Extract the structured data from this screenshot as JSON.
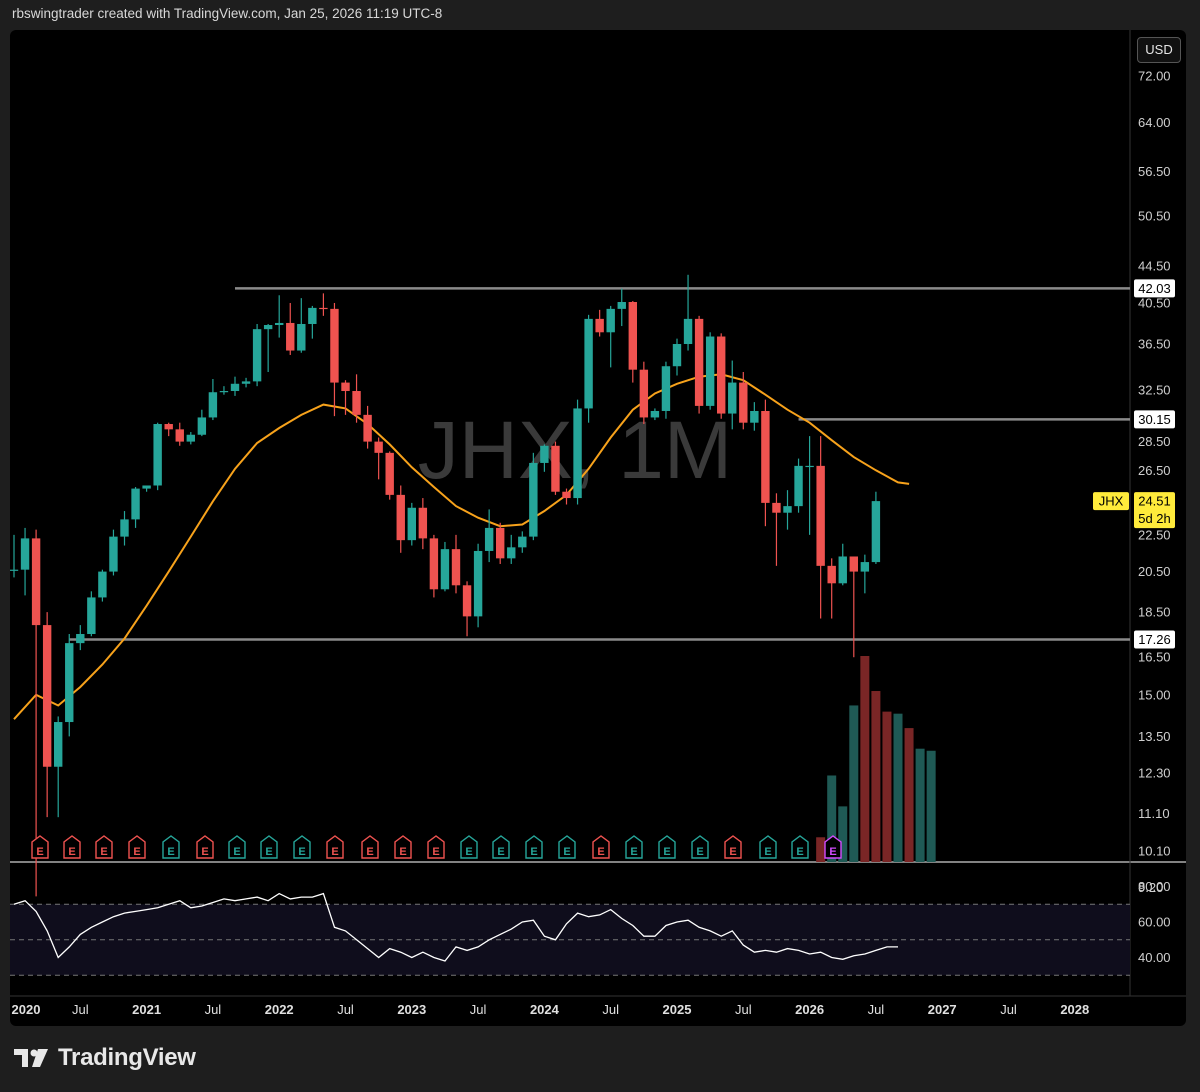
{
  "header": {
    "text": "rbswingtrader created with TradingView.com, Jan 25, 2026 11:19 UTC-8"
  },
  "watermark": "JHX, 1M",
  "currency_label": "USD",
  "footer": {
    "brand": "TradingView"
  },
  "colors": {
    "up": "#26a69a",
    "down": "#ef5350",
    "ma": "#f7a21b",
    "level_line": "#8a8a8a",
    "rsi": "#ffffff",
    "price_tag_bg": "#ffeb3b",
    "vol_up": "#1f5a55",
    "vol_down": "#7a2626"
  },
  "chart_data": {
    "type": "candlestick",
    "symbol": "JHX",
    "interval": "1M",
    "scale": "log",
    "y_ticks": [
      "72.00",
      "64.00",
      "56.50",
      "50.50",
      "44.50",
      "40.50",
      "36.50",
      "32.50",
      "28.50",
      "26.50",
      "22.50",
      "20.50",
      "18.50",
      "16.50",
      "15.00",
      "13.50",
      "12.30",
      "11.10",
      "10.10",
      "9.20"
    ],
    "y_tick_values": [
      72,
      64,
      56.5,
      50.5,
      44.5,
      40.5,
      36.5,
      32.5,
      28.5,
      26.5,
      22.5,
      20.5,
      18.5,
      16.5,
      15,
      13.5,
      12.3,
      11.1,
      10.1,
      9.2
    ],
    "x_labels": [
      {
        "label": "2020",
        "year": true,
        "m": 0
      },
      {
        "label": "Jul",
        "year": false,
        "m": 6
      },
      {
        "label": "2021",
        "year": true,
        "m": 12
      },
      {
        "label": "Jul",
        "year": false,
        "m": 18
      },
      {
        "label": "2022",
        "year": true,
        "m": 24
      },
      {
        "label": "Jul",
        "year": false,
        "m": 30
      },
      {
        "label": "2023",
        "year": true,
        "m": 36
      },
      {
        "label": "Jul",
        "year": false,
        "m": 42
      },
      {
        "label": "2024",
        "year": true,
        "m": 48
      },
      {
        "label": "Jul",
        "year": false,
        "m": 54
      },
      {
        "label": "2025",
        "year": true,
        "m": 60
      },
      {
        "label": "Jul",
        "year": false,
        "m": 66
      },
      {
        "label": "2026",
        "year": true,
        "m": 72
      },
      {
        "label": "Jul",
        "year": false,
        "m": 78
      },
      {
        "label": "2027",
        "year": true,
        "m": 84
      },
      {
        "label": "Jul",
        "year": false,
        "m": 90
      },
      {
        "label": "2028",
        "year": true,
        "m": 96
      }
    ],
    "candles": [
      [
        20.6,
        22.5,
        20.2,
        20.6
      ],
      [
        20.6,
        22.9,
        19.3,
        22.3
      ],
      [
        22.3,
        22.8,
        9.0,
        17.9
      ],
      [
        17.9,
        18.5,
        11.0,
        12.5
      ],
      [
        12.5,
        14.2,
        11.0,
        14.0
      ],
      [
        14.0,
        17.5,
        13.5,
        17.1
      ],
      [
        17.1,
        17.9,
        16.8,
        17.5
      ],
      [
        17.5,
        19.5,
        17.4,
        19.2
      ],
      [
        19.2,
        20.6,
        19.0,
        20.5
      ],
      [
        20.5,
        22.8,
        20.3,
        22.4
      ],
      [
        22.4,
        23.9,
        21.9,
        23.4
      ],
      [
        23.4,
        25.4,
        22.9,
        25.3
      ],
      [
        25.3,
        25.5,
        25.1,
        25.5
      ],
      [
        25.5,
        29.9,
        25.2,
        29.8
      ],
      [
        29.8,
        29.9,
        28.9,
        29.4
      ],
      [
        29.4,
        29.9,
        28.2,
        28.5
      ],
      [
        28.5,
        29.2,
        28.3,
        29.0
      ],
      [
        29.0,
        30.9,
        28.9,
        30.3
      ],
      [
        30.3,
        33.4,
        30.1,
        32.3
      ],
      [
        32.3,
        32.8,
        32.1,
        32.4
      ],
      [
        32.4,
        33.6,
        32.0,
        33.0
      ],
      [
        33.0,
        33.5,
        32.7,
        33.2
      ],
      [
        33.2,
        38.4,
        32.8,
        37.9
      ],
      [
        37.9,
        38.4,
        34.0,
        38.3
      ],
      [
        38.3,
        41.3,
        37.1,
        38.5
      ],
      [
        38.5,
        40.5,
        35.5,
        35.9
      ],
      [
        35.9,
        41.0,
        35.7,
        38.4
      ],
      [
        38.4,
        40.2,
        37.0,
        40.0
      ],
      [
        40.0,
        41.5,
        39.2,
        39.9
      ],
      [
        39.9,
        40.5,
        30.4,
        33.1
      ],
      [
        33.1,
        33.3,
        30.5,
        32.4
      ],
      [
        32.4,
        33.8,
        29.9,
        30.5
      ],
      [
        30.5,
        31.2,
        28.0,
        28.5
      ],
      [
        28.5,
        28.8,
        25.9,
        27.7
      ],
      [
        27.7,
        27.8,
        24.6,
        24.9
      ],
      [
        24.9,
        25.5,
        21.5,
        22.2
      ],
      [
        22.2,
        24.4,
        21.9,
        24.1
      ],
      [
        24.1,
        24.7,
        21.7,
        22.3
      ],
      [
        22.3,
        22.5,
        19.2,
        19.6
      ],
      [
        19.6,
        22.1,
        19.5,
        21.7
      ],
      [
        21.7,
        22.5,
        19.4,
        19.8
      ],
      [
        19.8,
        20.0,
        17.4,
        18.3
      ],
      [
        18.3,
        22.0,
        17.8,
        21.6
      ],
      [
        21.6,
        24.0,
        21.0,
        22.9
      ],
      [
        22.9,
        23.2,
        20.9,
        21.2
      ],
      [
        21.2,
        22.5,
        20.9,
        21.8
      ],
      [
        21.8,
        22.7,
        21.5,
        22.4
      ],
      [
        22.4,
        27.7,
        22.2,
        27.0
      ],
      [
        27.0,
        28.3,
        26.4,
        28.2
      ],
      [
        28.2,
        28.5,
        24.9,
        25.1
      ],
      [
        25.1,
        25.3,
        24.3,
        24.7
      ],
      [
        24.7,
        31.7,
        24.3,
        31.0
      ],
      [
        31.0,
        39.3,
        29.9,
        38.9
      ],
      [
        38.9,
        39.8,
        37.2,
        37.6
      ],
      [
        37.6,
        40.2,
        34.4,
        39.9
      ],
      [
        39.9,
        42.0,
        38.2,
        40.6
      ],
      [
        40.6,
        40.7,
        33.1,
        34.2
      ],
      [
        34.2,
        34.9,
        29.8,
        30.3
      ],
      [
        30.3,
        31.0,
        30.1,
        30.8
      ],
      [
        30.8,
        34.9,
        30.2,
        34.5
      ],
      [
        34.5,
        37.0,
        33.7,
        36.5
      ],
      [
        36.5,
        43.5,
        35.9,
        38.9
      ],
      [
        38.9,
        39.2,
        30.6,
        31.2
      ],
      [
        31.2,
        37.6,
        30.9,
        37.2
      ],
      [
        37.2,
        37.5,
        30.2,
        30.6
      ],
      [
        30.6,
        35.0,
        29.4,
        33.1
      ],
      [
        33.1,
        34.0,
        29.4,
        29.9
      ],
      [
        29.9,
        31.5,
        29.3,
        30.8
      ],
      [
        30.8,
        31.7,
        23.0,
        24.4
      ],
      [
        24.4,
        25.0,
        20.8,
        23.8
      ],
      [
        23.8,
        25.2,
        22.8,
        24.2
      ],
      [
        24.2,
        27.3,
        23.8,
        26.8
      ],
      [
        26.8,
        28.9,
        22.5,
        26.8
      ]
    ],
    "candles_tail": [
      [
        26.8,
        28.9,
        18.2,
        20.8
      ],
      [
        20.8,
        21.2,
        18.2,
        19.9
      ],
      [
        19.9,
        22.0,
        19.8,
        21.3
      ],
      [
        21.3,
        21.3,
        16.5,
        20.5
      ],
      [
        20.5,
        21.4,
        19.4,
        21.0
      ],
      [
        21.0,
        25.1,
        20.9,
        24.51
      ]
    ],
    "ma": [
      [
        0,
        14.1
      ],
      [
        2,
        15.0
      ],
      [
        4,
        14.6
      ],
      [
        6,
        15.3
      ],
      [
        8,
        16.2
      ],
      [
        10,
        17.3
      ],
      [
        12,
        18.8
      ],
      [
        14,
        20.5
      ],
      [
        16,
        22.4
      ],
      [
        18,
        24.5
      ],
      [
        20,
        26.6
      ],
      [
        22,
        28.4
      ],
      [
        24,
        29.5
      ],
      [
        26,
        30.5
      ],
      [
        28,
        31.3
      ],
      [
        30,
        31.0
      ],
      [
        32,
        29.8
      ],
      [
        34,
        28.3
      ],
      [
        36,
        26.7
      ],
      [
        38,
        25.4
      ],
      [
        40,
        24.2
      ],
      [
        42,
        23.5
      ],
      [
        44,
        23.0
      ],
      [
        46,
        23.1
      ],
      [
        48,
        23.9
      ],
      [
        50,
        24.9
      ],
      [
        52,
        26.6
      ],
      [
        54,
        28.8
      ],
      [
        56,
        30.9
      ],
      [
        58,
        32.2
      ],
      [
        60,
        33.0
      ],
      [
        62,
        33.6
      ],
      [
        64,
        33.8
      ],
      [
        66,
        33.3
      ],
      [
        68,
        32.1
      ],
      [
        70,
        30.9
      ],
      [
        72,
        29.9
      ],
      [
        74,
        28.6
      ],
      [
        76,
        27.4
      ],
      [
        78,
        26.5
      ],
      [
        80,
        25.7
      ],
      [
        81,
        25.6
      ]
    ],
    "levels": [
      {
        "price": 42.03,
        "label": "42.03",
        "from_m": 20
      },
      {
        "price": 30.15,
        "label": "30.15",
        "from_m": 71
      },
      {
        "price": 17.26,
        "label": "17.26",
        "from_m": 5
      }
    ],
    "last_price": {
      "symbol": "JHX",
      "value": "24.51",
      "countdown": "5d 2h"
    },
    "volume": [
      {
        "m": 73,
        "v": 0.12,
        "up": false
      },
      {
        "m": 74,
        "v": 0.42,
        "up": true
      },
      {
        "m": 75,
        "v": 0.27,
        "up": true
      },
      {
        "m": 76,
        "v": 0.76,
        "up": true
      },
      {
        "m": 77,
        "v": 1.0,
        "up": false
      },
      {
        "m": 78,
        "v": 0.83,
        "up": false
      },
      {
        "m": 79,
        "v": 0.73,
        "up": false
      },
      {
        "m": 80,
        "v": 0.72,
        "up": true
      },
      {
        "m": 81,
        "v": 0.65,
        "up": false
      },
      {
        "m": 82,
        "v": 0.55,
        "up": true
      },
      {
        "m": 83,
        "v": 0.54,
        "up": true
      }
    ],
    "earnings": [
      {
        "m": 3,
        "up": false
      },
      {
        "m": 7,
        "up": false
      },
      {
        "m": 11,
        "up": false
      },
      {
        "m": 15,
        "up": false
      },
      {
        "m": 19,
        "up": true
      },
      {
        "m": 23,
        "up": false
      },
      {
        "m": 27,
        "up": true
      },
      {
        "m": 31,
        "up": true
      },
      {
        "m": 35,
        "up": true
      },
      {
        "m": 39,
        "up": false
      },
      {
        "m": 43,
        "up": false
      },
      {
        "m": 47,
        "up": false
      },
      {
        "m": 51,
        "up": false
      },
      {
        "m": 55,
        "up": true
      },
      {
        "m": 59,
        "up": true
      },
      {
        "m": 63,
        "up": true
      },
      {
        "m": 67,
        "up": true
      },
      {
        "m": 71,
        "up": false
      },
      {
        "m": 75,
        "up": true
      },
      {
        "m": 79,
        "up": true
      },
      {
        "m": 83,
        "up": true
      },
      {
        "m": 87,
        "up": false
      },
      {
        "m": 91,
        "up": true
      },
      {
        "m": 95,
        "up": true
      },
      {
        "m": 99,
        "up": false
      }
    ],
    "earnings_letter": "E",
    "earnings_next_label": "E",
    "rsi": {
      "ticks": [
        "80.00",
        "60.00",
        "40.00"
      ],
      "tick_values": [
        80,
        60,
        40
      ],
      "upper": 70,
      "mid": 50,
      "lower": 30,
      "values": [
        70,
        72,
        66,
        55,
        40,
        46,
        53,
        57,
        60,
        63,
        65,
        66,
        67,
        68,
        70,
        72,
        68,
        69,
        71,
        73,
        72,
        73,
        74,
        72,
        76,
        73,
        74,
        74,
        76,
        57,
        55,
        50,
        45,
        40,
        45,
        43,
        40,
        43,
        40,
        38,
        46,
        44,
        46,
        50,
        53,
        56,
        60,
        61,
        52,
        50,
        59,
        65,
        63,
        64,
        67,
        62,
        58,
        52,
        52,
        58,
        60,
        61,
        57,
        55,
        52,
        55,
        47,
        43,
        44,
        43,
        45,
        44,
        42,
        43,
        40,
        39,
        41,
        42,
        44,
        46,
        46
      ]
    }
  }
}
